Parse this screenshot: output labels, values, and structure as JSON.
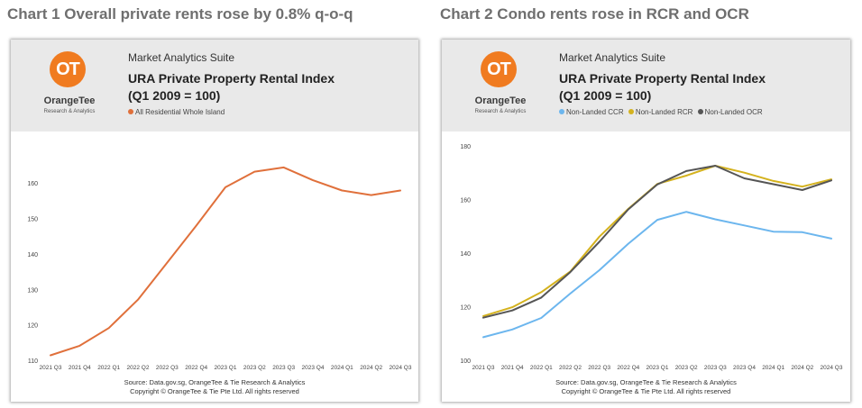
{
  "headings": [
    "Chart 1 Overall private rents rose by 0.8% q-o-q",
    "Chart 2 Condo rents rose in RCR and OCR"
  ],
  "brand": {
    "logo_text": "OT",
    "name": "OrangeTee",
    "tagline": "Research & Analytics",
    "suite": "Market Analytics Suite",
    "logo_color": "#f07b20"
  },
  "source_lines": [
    "Source: Data.gov.sg, OrangeTee & Tie Research & Analytics",
    "Copyright © OrangeTee & Tie Pte Ltd. All rights reserved"
  ],
  "chart_data": [
    {
      "type": "line",
      "title": "URA Private Property Rental Index",
      "subtitle": "(Q1 2009 = 100)",
      "categories": [
        "2021 Q3",
        "2021 Q4",
        "2022 Q1",
        "2022 Q2",
        "2022 Q3",
        "2022 Q4",
        "2023 Q1",
        "2023 Q2",
        "2023 Q3",
        "2023 Q4",
        "2024 Q1",
        "2024 Q2",
        "2024 Q3"
      ],
      "series": [
        {
          "name": "All Residential Whole Island",
          "color": "#e0703b",
          "values": [
            111.4,
            114.1,
            119.1,
            127.1,
            137.5,
            148.0,
            158.8,
            163.2,
            164.4,
            160.8,
            157.9,
            156.6,
            157.9
          ]
        }
      ],
      "yticks": [
        110,
        120,
        130,
        140,
        150,
        160
      ],
      "ylim": [
        110,
        172
      ],
      "grid": false,
      "legend": "top-left"
    },
    {
      "type": "line",
      "title": "URA Private Property Rental Index",
      "subtitle": "(Q1 2009 = 100)",
      "categories": [
        "2021 Q3",
        "2021 Q4",
        "2022 Q1",
        "2022 Q2",
        "2022 Q3",
        "2022 Q4",
        "2023 Q1",
        "2023 Q2",
        "2023 Q3",
        "2023 Q4",
        "2024 Q1",
        "2024 Q2",
        "2024 Q3"
      ],
      "series": [
        {
          "name": "Non-Landed CCR",
          "color": "#6cb6ee",
          "values": [
            108.6,
            111.5,
            115.8,
            124.9,
            133.6,
            143.5,
            152.4,
            155.4,
            152.6,
            150.3,
            148.0,
            147.8,
            145.4
          ]
        },
        {
          "name": "Non-Landed RCR",
          "color": "#d4b21e",
          "values": [
            116.5,
            119.8,
            125.4,
            133.1,
            146.1,
            156.5,
            165.8,
            168.9,
            172.6,
            170.0,
            166.9,
            164.8,
            167.5
          ]
        },
        {
          "name": "Non-Landed OCR",
          "color": "#555555",
          "values": [
            115.9,
            118.6,
            123.4,
            132.9,
            144.2,
            156.3,
            165.6,
            170.6,
            172.6,
            167.9,
            165.7,
            163.5,
            167.1
          ]
        }
      ],
      "yticks": [
        100,
        120,
        140,
        160,
        180
      ],
      "ylim": [
        100,
        182
      ],
      "grid": false,
      "legend": "top-left"
    }
  ]
}
